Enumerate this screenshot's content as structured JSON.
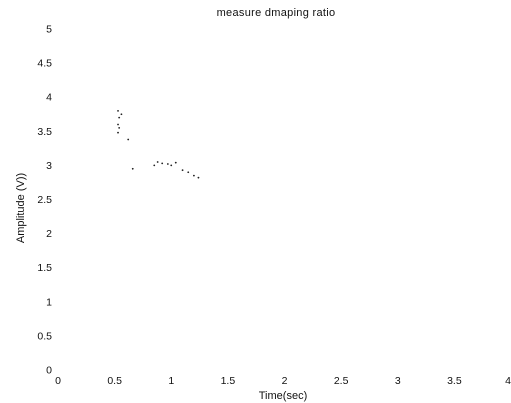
{
  "chart_data": {
    "type": "scatter",
    "title": "measure dmaping ratio",
    "xlabel": "Time(sec)",
    "ylabel": "Amplitude (V))",
    "xlim": [
      0,
      4
    ],
    "ylim": [
      0,
      5
    ],
    "x_ticks": [
      "0",
      "0.5",
      "1",
      "1.5",
      "2",
      "2.5",
      "3",
      "3.5",
      "4"
    ],
    "y_ticks": [
      "0",
      "0.5",
      "1",
      "1.5",
      "2",
      "2.5",
      "3",
      "3.5",
      "4",
      "4.5",
      "5"
    ],
    "grid": false,
    "marker_color": "#222222",
    "series": [
      {
        "points": [
          {
            "x": 0.53,
            "y": 3.8
          },
          {
            "x": 0.54,
            "y": 3.7
          },
          {
            "x": 0.53,
            "y": 3.6
          },
          {
            "x": 0.54,
            "y": 3.55
          },
          {
            "x": 0.53,
            "y": 3.48
          },
          {
            "x": 0.56,
            "y": 3.75
          },
          {
            "x": 0.62,
            "y": 3.38
          },
          {
            "x": 0.66,
            "y": 2.95
          },
          {
            "x": 0.85,
            "y": 3.0
          },
          {
            "x": 0.88,
            "y": 3.05
          },
          {
            "x": 0.92,
            "y": 3.03
          },
          {
            "x": 0.97,
            "y": 3.02
          },
          {
            "x": 1.0,
            "y": 3.0
          },
          {
            "x": 1.04,
            "y": 3.04
          },
          {
            "x": 1.1,
            "y": 2.93
          },
          {
            "x": 1.15,
            "y": 2.9
          },
          {
            "x": 1.2,
            "y": 2.85
          },
          {
            "x": 1.24,
            "y": 2.82
          }
        ]
      }
    ]
  }
}
